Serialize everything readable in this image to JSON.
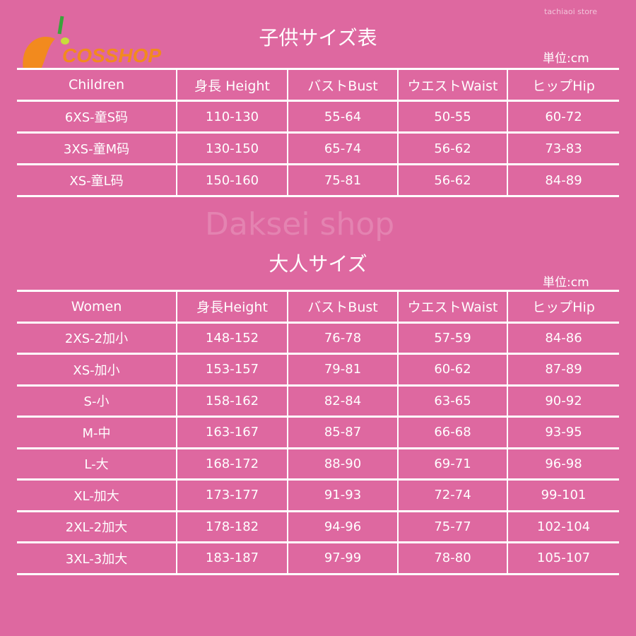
{
  "logo": {
    "text": "COSSHOP"
  },
  "watermarks": {
    "center": "Daksei shop",
    "store": "tachiaoi store"
  },
  "children": {
    "title": "子供サイズ表",
    "unit": "単位:cm",
    "headers": [
      "Children",
      "身長 Height",
      "バストBust",
      "ウエストWaist",
      "ヒップHip"
    ],
    "rows": [
      [
        "6XS-童S码",
        "110-130",
        "55-64",
        "50-55",
        "60-72"
      ],
      [
        "3XS-童M码",
        "130-150",
        "65-74",
        "56-62",
        "73-83"
      ],
      [
        "XS-童L码",
        "150-160",
        "75-81",
        "56-62",
        "84-89"
      ]
    ]
  },
  "adults": {
    "title": "大人サイズ",
    "unit": "単位:cm",
    "headers": [
      "Women",
      "身長Height",
      "バストBust",
      "ウエストWaist",
      "ヒップHip"
    ],
    "rows": [
      [
        "2XS-2加小",
        "148-152",
        "76-78",
        "57-59",
        "84-86"
      ],
      [
        "XS-加小",
        "153-157",
        "79-81",
        "60-62",
        "87-89"
      ],
      [
        "S-小",
        "158-162",
        "82-84",
        "63-65",
        "90-92"
      ],
      [
        "M-中",
        "163-167",
        "85-87",
        "66-68",
        "93-95"
      ],
      [
        "L-大",
        "168-172",
        "88-90",
        "69-71",
        "96-98"
      ],
      [
        "XL-加大",
        "173-177",
        "91-93",
        "72-74",
        "99-101"
      ],
      [
        "2XL-2加大",
        "178-182",
        "94-96",
        "75-77",
        "102-104"
      ],
      [
        "3XL-3加大",
        "183-187",
        "97-99",
        "78-80",
        "105-107"
      ]
    ]
  }
}
